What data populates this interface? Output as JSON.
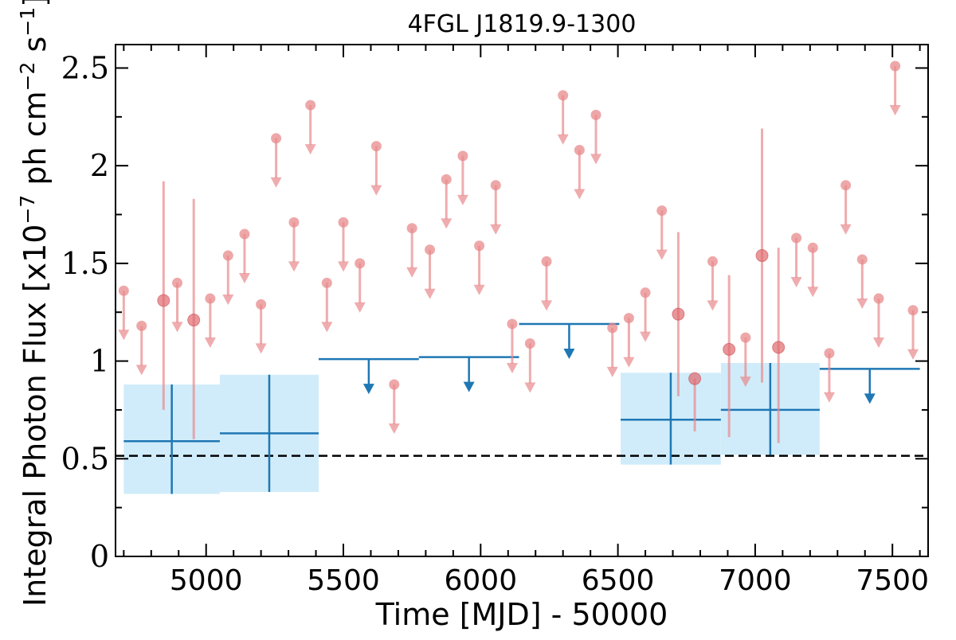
{
  "chart_data": {
    "type": "scatter",
    "title": "4FGL J1819.9-1300",
    "xlabel": "Time [MJD] - 50000",
    "ylabel_parts": [
      "Integral Photon Flux [x10",
      "−7",
      " ph cm",
      "−2",
      " s",
      "−1",
      "]"
    ],
    "xlim": [
      4670,
      7630
    ],
    "ylim": [
      0,
      2.62
    ],
    "x_ticks": [
      5000,
      5500,
      6000,
      6500,
      7000,
      7500
    ],
    "x_tick_labels": [
      "5000",
      "5500",
      "6000",
      "6500",
      "7000",
      "7500"
    ],
    "y_ticks": [
      0,
      0.5,
      1,
      1.5,
      2,
      2.5
    ],
    "y_tick_labels": [
      "0",
      "0.5",
      "1",
      "1.5",
      "2",
      "2.5"
    ],
    "reference_level": 0.515,
    "fine_bins": {
      "color": "#e8898b",
      "detections": [
        {
          "x": 4845,
          "y": 1.31,
          "lo": 0.75,
          "hi": 1.92
        },
        {
          "x": 4955,
          "y": 1.21,
          "lo": 0.6,
          "hi": 1.83
        },
        {
          "x": 6720,
          "y": 1.24,
          "lo": 0.82,
          "hi": 1.66
        },
        {
          "x": 6780,
          "y": 0.91,
          "lo": 0.64,
          "hi": 0.91
        },
        {
          "x": 6905,
          "y": 1.06,
          "lo": 0.61,
          "hi": 1.44
        },
        {
          "x": 7025,
          "y": 1.54,
          "lo": 0.89,
          "hi": 2.19
        },
        {
          "x": 7085,
          "y": 1.07,
          "lo": 0.58,
          "hi": 1.58
        }
      ],
      "upper_limits": [
        {
          "x": 4700,
          "y": 1.36
        },
        {
          "x": 4765,
          "y": 1.18
        },
        {
          "x": 4895,
          "y": 1.4
        },
        {
          "x": 5015,
          "y": 1.32
        },
        {
          "x": 5080,
          "y": 1.54
        },
        {
          "x": 5140,
          "y": 1.65
        },
        {
          "x": 5200,
          "y": 1.29
        },
        {
          "x": 5255,
          "y": 2.14
        },
        {
          "x": 5320,
          "y": 1.71
        },
        {
          "x": 5380,
          "y": 2.31
        },
        {
          "x": 5440,
          "y": 1.4
        },
        {
          "x": 5500,
          "y": 1.71
        },
        {
          "x": 5560,
          "y": 1.5
        },
        {
          "x": 5620,
          "y": 2.1
        },
        {
          "x": 5685,
          "y": 0.88
        },
        {
          "x": 5750,
          "y": 1.68
        },
        {
          "x": 5815,
          "y": 1.57
        },
        {
          "x": 5875,
          "y": 1.93
        },
        {
          "x": 5935,
          "y": 2.05
        },
        {
          "x": 5995,
          "y": 1.59
        },
        {
          "x": 6055,
          "y": 1.9
        },
        {
          "x": 6115,
          "y": 1.19
        },
        {
          "x": 6180,
          "y": 1.09
        },
        {
          "x": 6240,
          "y": 1.51
        },
        {
          "x": 6300,
          "y": 2.36
        },
        {
          "x": 6360,
          "y": 2.08
        },
        {
          "x": 6420,
          "y": 2.26
        },
        {
          "x": 6480,
          "y": 1.17
        },
        {
          "x": 6540,
          "y": 1.22
        },
        {
          "x": 6600,
          "y": 1.35
        },
        {
          "x": 6660,
          "y": 1.77
        },
        {
          "x": 6845,
          "y": 1.51
        },
        {
          "x": 6965,
          "y": 1.12
        },
        {
          "x": 7150,
          "y": 1.63
        },
        {
          "x": 7210,
          "y": 1.58
        },
        {
          "x": 7270,
          "y": 1.04
        },
        {
          "x": 7330,
          "y": 1.9
        },
        {
          "x": 7390,
          "y": 1.52
        },
        {
          "x": 7450,
          "y": 1.32
        },
        {
          "x": 7510,
          "y": 2.51
        },
        {
          "x": 7575,
          "y": 1.26
        }
      ]
    },
    "coarse_bins": {
      "color": "#1f77b4",
      "band_color": "#d0ecfa",
      "detections": [
        {
          "x0": 4700,
          "x1": 5050,
          "y": 0.59,
          "lo": 0.32,
          "hi": 0.88
        },
        {
          "x0": 5050,
          "x1": 5410,
          "y": 0.63,
          "lo": 0.33,
          "hi": 0.93
        },
        {
          "x0": 6510,
          "x1": 6875,
          "y": 0.7,
          "lo": 0.47,
          "hi": 0.94
        },
        {
          "x0": 6875,
          "x1": 7235,
          "y": 0.75,
          "lo": 0.52,
          "hi": 0.99
        }
      ],
      "upper_limits": [
        {
          "x0": 5410,
          "x1": 5775,
          "y": 1.01
        },
        {
          "x0": 5775,
          "x1": 6140,
          "y": 1.02
        },
        {
          "x0": 6140,
          "x1": 6505,
          "y": 1.19
        },
        {
          "x0": 7235,
          "x1": 7600,
          "y": 0.96
        }
      ]
    }
  }
}
